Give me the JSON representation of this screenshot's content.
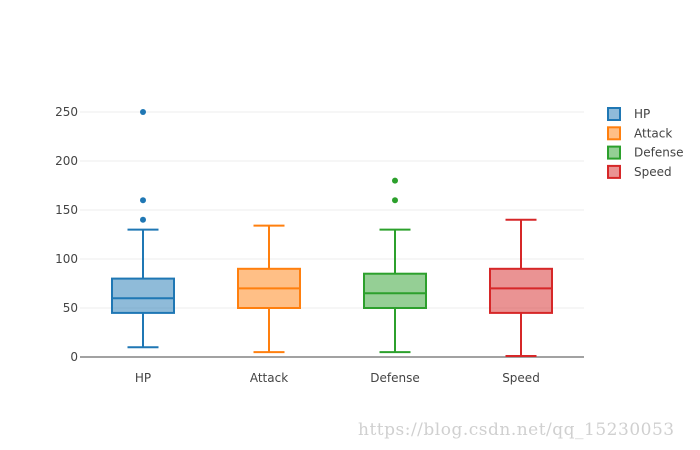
{
  "chart_data": {
    "type": "box",
    "title": "",
    "xlabel": "",
    "ylabel": "",
    "categories": [
      "HP",
      "Attack",
      "Defense",
      "Speed"
    ],
    "ylim": [
      0,
      270
    ],
    "yticks": [
      0,
      50,
      100,
      150,
      200,
      250
    ],
    "grid": true,
    "legend_position": "top-right",
    "series": [
      {
        "name": "HP",
        "color": "#1f77b4",
        "lower_whisker": 10,
        "q1": 45,
        "median": 60,
        "q3": 80,
        "upper_whisker": 130,
        "outliers": [
          140,
          160,
          250
        ]
      },
      {
        "name": "Attack",
        "color": "#ff7f0e",
        "lower_whisker": 5,
        "q1": 50,
        "median": 70,
        "q3": 90,
        "upper_whisker": 134,
        "outliers": []
      },
      {
        "name": "Defense",
        "color": "#2ca02c",
        "lower_whisker": 5,
        "q1": 50,
        "median": 65,
        "q3": 85,
        "upper_whisker": 130,
        "outliers": [
          160,
          180
        ]
      },
      {
        "name": "Speed",
        "color": "#d62728",
        "lower_whisker": 1,
        "q1": 45,
        "median": 70,
        "q3": 90,
        "upper_whisker": 140,
        "outliers": []
      }
    ]
  },
  "watermark": "https://blog.csdn.net/qq_15230053"
}
